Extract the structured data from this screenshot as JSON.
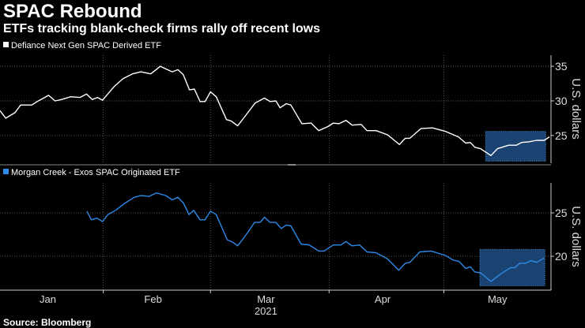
{
  "title": "SPAC Rebound",
  "subtitle": "ETFs tracking blank-check firms rally off recent lows",
  "source": "Source: Bloomberg",
  "colors": {
    "series1": "#ffffff",
    "series2": "#2d8ae8",
    "highlight": "#1f4f86",
    "grid": "#6a6a6a"
  },
  "chart_data": [
    {
      "type": "line",
      "legend": "Defiance Next Gen SPAC Derived ETF",
      "ylabel": "U.S. dollars",
      "yticks": [
        25,
        30,
        35
      ],
      "ylim": [
        21.0,
        36.6
      ],
      "xlim": [
        5,
        149
      ],
      "x_unit": "day of year 2021",
      "highlight": {
        "x": [
          131.9,
          147.6
        ],
        "y": [
          21.3,
          25.6
        ]
      },
      "x": [
        5.0,
        6.5,
        8.9,
        10.4,
        13.3,
        14.7,
        17.7,
        19.4,
        21.1,
        23.5,
        25.9,
        27.6,
        29.1,
        30.5,
        31.8,
        34.7,
        37.1,
        39.6,
        41.8,
        44.4,
        46.9,
        50.0,
        51.5,
        52.9,
        54.5,
        55.8,
        57.3,
        58.6,
        60.0,
        61.5,
        64.2,
        65.4,
        67.1,
        68.8,
        71.7,
        74.1,
        75.6,
        77.1,
        78.2,
        79.8,
        81.0,
        83.9,
        86.3,
        88.3,
        90.7,
        92.1,
        93.6,
        95.4,
        97.0,
        99.4,
        100.9,
        103.3,
        106.3,
        109.4,
        110.9,
        112.1,
        115.0,
        118.0,
        121.4,
        124.8,
        126.7,
        127.9,
        129.1,
        130.6,
        133.3,
        135.0,
        137.9,
        139.9,
        141.3,
        143.3,
        145.2,
        147.2,
        148.6
      ],
      "values": [
        28.6,
        27.5,
        28.3,
        29.4,
        29.4,
        29.9,
        30.8,
        30.0,
        30.2,
        30.6,
        30.5,
        31.0,
        30.2,
        30.5,
        30.1,
        32.0,
        33.2,
        33.9,
        34.2,
        33.9,
        35.0,
        34.2,
        34.5,
        33.8,
        31.6,
        31.7,
        29.9,
        29.9,
        31.3,
        30.6,
        27.3,
        27.1,
        26.4,
        27.6,
        29.7,
        30.4,
        29.9,
        30.0,
        29.0,
        29.6,
        29.4,
        26.7,
        26.8,
        25.7,
        26.3,
        26.8,
        26.7,
        27.2,
        26.5,
        26.6,
        25.7,
        25.7,
        25.1,
        23.7,
        24.6,
        24.6,
        26.0,
        26.1,
        25.6,
        24.8,
        23.9,
        24.0,
        23.3,
        23.1,
        22.1,
        23.1,
        23.6,
        23.6,
        24.0,
        24.1,
        24.3,
        24.3,
        24.8
      ]
    },
    {
      "type": "line",
      "legend": "Morgan Creek - Exos SPAC Originated ETF",
      "ylabel": "U.S. dollars",
      "yticks": [
        20,
        25
      ],
      "ylim": [
        16.1,
        28.45
      ],
      "xlim": [
        5,
        149
      ],
      "x_unit": "day of year 2021",
      "highlight": {
        "x": [
          130.4,
          147.4
        ],
        "y": [
          16.6,
          20.8
        ]
      },
      "x": [
        27.7,
        28.9,
        30.3,
        31.8,
        33.2,
        35.2,
        37.6,
        40.1,
        41.8,
        43.9,
        45.9,
        48.3,
        50.0,
        51.5,
        53.0,
        54.4,
        55.6,
        57.3,
        58.6,
        60.0,
        61.5,
        64.4,
        65.9,
        67.1,
        68.5,
        70.0,
        71.5,
        73.0,
        74.1,
        75.6,
        77.1,
        78.5,
        79.8,
        81.0,
        83.7,
        85.8,
        88.3,
        89.7,
        92.1,
        94.1,
        95.4,
        97.0,
        99.0,
        100.9,
        103.3,
        106.3,
        109.2,
        110.9,
        112.1,
        114.7,
        117.7,
        121.4,
        123.3,
        125.0,
        126.7,
        127.9,
        129.1,
        130.6,
        133.3,
        135.3,
        138.4,
        139.6,
        140.8,
        142.3,
        143.8,
        145.2,
        147.2
      ],
      "values": [
        25.2,
        24.2,
        24.4,
        24.0,
        24.8,
        25.3,
        26.1,
        26.8,
        27.0,
        26.9,
        27.3,
        27.0,
        26.5,
        26.8,
        26.1,
        24.8,
        25.3,
        24.2,
        24.2,
        25.2,
        24.8,
        21.9,
        21.6,
        21.2,
        22.0,
        22.9,
        23.9,
        23.9,
        24.5,
        23.9,
        23.9,
        23.2,
        23.6,
        23.5,
        21.4,
        21.3,
        20.6,
        20.6,
        21.3,
        21.3,
        21.7,
        21.2,
        21.3,
        20.5,
        20.4,
        19.7,
        18.4,
        19.2,
        19.3,
        20.5,
        20.6,
        20.1,
        19.6,
        19.4,
        18.6,
        18.8,
        18.2,
        18.1,
        17.1,
        17.8,
        18.7,
        18.7,
        19.2,
        19.2,
        19.5,
        19.3,
        19.8
      ]
    }
  ],
  "x_axis": {
    "month_boundaries": [
      32,
      60,
      91,
      121
    ],
    "labels": [
      {
        "label": "Jan",
        "x": 17.5
      },
      {
        "label": "Feb",
        "x": 45
      },
      {
        "label": "Mar",
        "x": 74.5
      },
      {
        "label": "Apr",
        "x": 105
      },
      {
        "label": "May",
        "x": 135
      }
    ],
    "year": "2021",
    "year_x": 74.5
  }
}
